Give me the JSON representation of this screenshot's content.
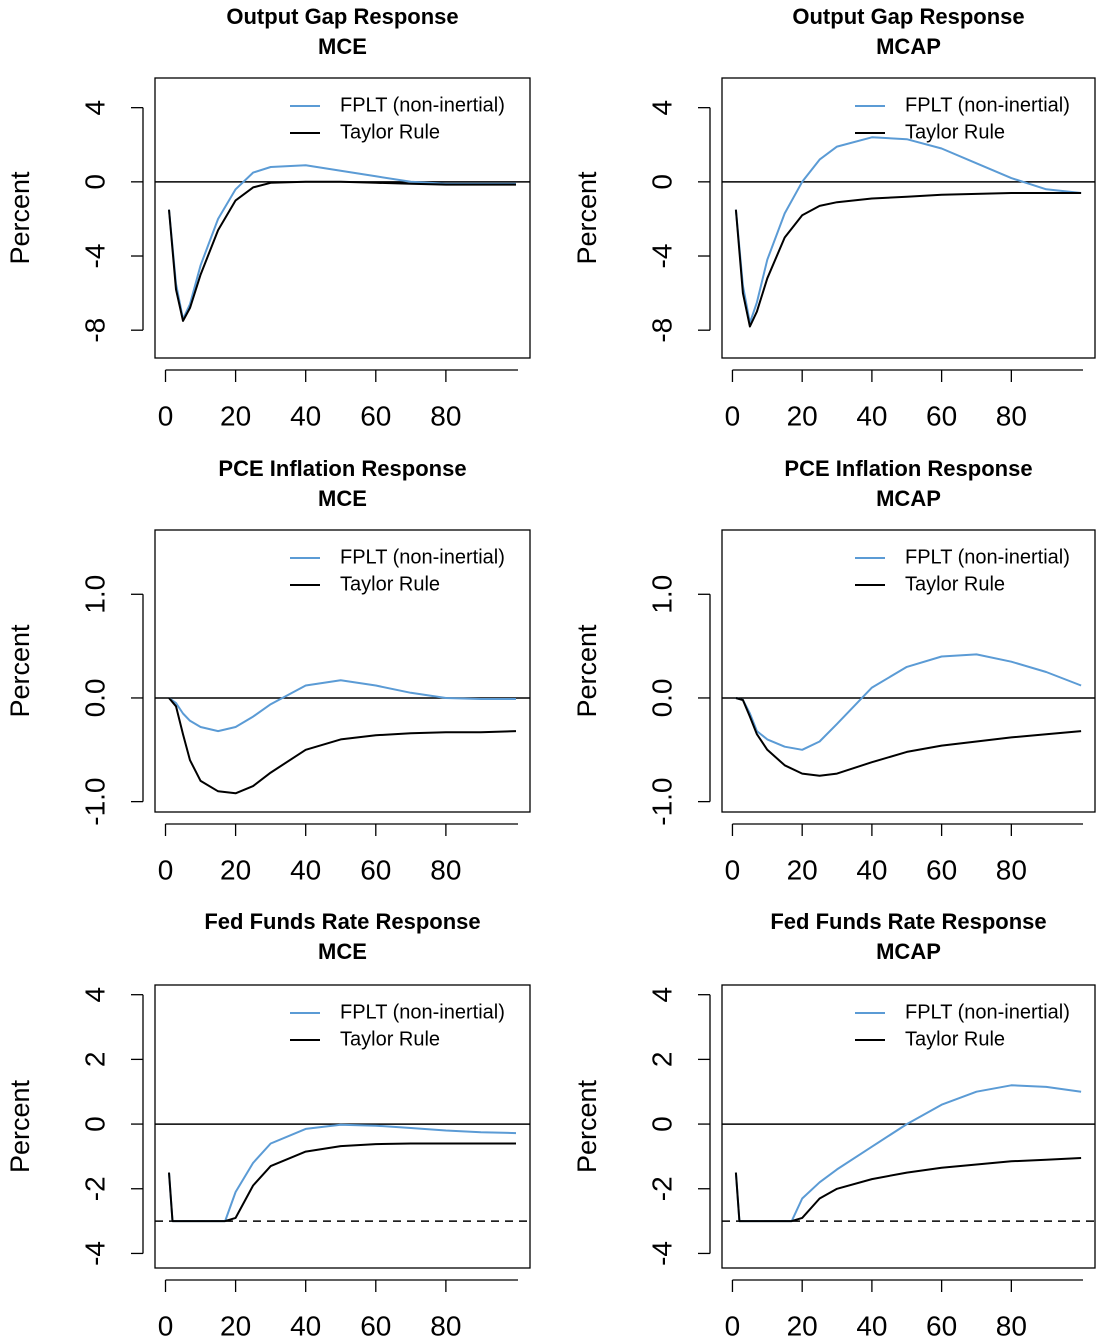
{
  "chart_data": [
    {
      "type": "line",
      "title": "Output Gap Response",
      "subtitle": "MCE",
      "ylabel": "Percent",
      "x": [
        1,
        3,
        5,
        7,
        10,
        15,
        20,
        25,
        30,
        40,
        50,
        60,
        70,
        80,
        90,
        100
      ],
      "series": [
        {
          "name": "FPLT (non-inertial)",
          "color": "#5b9bd5",
          "values": [
            -1.5,
            -5.5,
            -7.4,
            -6.6,
            -4.5,
            -2.0,
            -0.4,
            0.5,
            0.8,
            0.9,
            0.6,
            0.3,
            0.0,
            -0.1,
            -0.1,
            -0.1
          ]
        },
        {
          "name": "Taylor Rule",
          "color": "#000000",
          "values": [
            -1.5,
            -5.8,
            -7.5,
            -6.8,
            -5.0,
            -2.6,
            -1.0,
            -0.3,
            -0.05,
            0,
            0,
            -0.05,
            -0.1,
            -0.15,
            -0.15,
            -0.15
          ]
        }
      ],
      "xlim": [
        -3,
        104
      ],
      "xticks": [
        0,
        20,
        40,
        60,
        80
      ],
      "ylim": [
        -9.5,
        5.6
      ],
      "yticks": [
        -8,
        -4,
        0,
        4
      ],
      "hline": 0,
      "legend": "topright"
    },
    {
      "type": "line",
      "title": "Output Gap Response",
      "subtitle": "MCAP",
      "ylabel": "Percent",
      "x": [
        1,
        3,
        5,
        7,
        10,
        15,
        20,
        25,
        30,
        40,
        50,
        60,
        70,
        80,
        90,
        100
      ],
      "series": [
        {
          "name": "FPLT (non-inertial)",
          "color": "#5b9bd5",
          "values": [
            -1.5,
            -5.6,
            -7.6,
            -6.5,
            -4.2,
            -1.7,
            0.0,
            1.2,
            1.9,
            2.4,
            2.3,
            1.8,
            1.0,
            0.2,
            -0.4,
            -0.6
          ]
        },
        {
          "name": "Taylor Rule",
          "color": "#000000",
          "values": [
            -1.5,
            -6.0,
            -7.8,
            -7.0,
            -5.2,
            -3.0,
            -1.8,
            -1.3,
            -1.1,
            -0.9,
            -0.8,
            -0.7,
            -0.65,
            -0.6,
            -0.6,
            -0.6
          ]
        }
      ],
      "xlim": [
        -3,
        104
      ],
      "xticks": [
        0,
        20,
        40,
        60,
        80
      ],
      "ylim": [
        -9.5,
        5.6
      ],
      "yticks": [
        -8,
        -4,
        0,
        4
      ],
      "hline": 0,
      "legend": "topright"
    },
    {
      "type": "line",
      "title": "PCE Inflation Response",
      "subtitle": "MCE",
      "ylabel": "Percent",
      "x": [
        1,
        3,
        5,
        7,
        10,
        15,
        20,
        25,
        30,
        40,
        50,
        60,
        70,
        80,
        90,
        100
      ],
      "series": [
        {
          "name": "FPLT (non-inertial)",
          "color": "#5b9bd5",
          "values": [
            0,
            -0.05,
            -0.15,
            -0.22,
            -0.28,
            -0.32,
            -0.28,
            -0.18,
            -0.06,
            0.12,
            0.17,
            0.12,
            0.05,
            0.0,
            -0.01,
            -0.01
          ]
        },
        {
          "name": "Taylor Rule",
          "color": "#000000",
          "values": [
            0,
            -0.08,
            -0.35,
            -0.6,
            -0.8,
            -0.9,
            -0.92,
            -0.85,
            -0.72,
            -0.5,
            -0.4,
            -0.36,
            -0.34,
            -0.33,
            -0.33,
            -0.32
          ]
        }
      ],
      "xlim": [
        -3,
        104
      ],
      "xticks": [
        0,
        20,
        40,
        60,
        80
      ],
      "ylim": [
        -1.1,
        1.62
      ],
      "yticks": [
        {
          "value": -1,
          "label": "-1.0"
        },
        {
          "value": 0,
          "label": "0.0"
        },
        {
          "value": 1,
          "label": "1.0"
        }
      ],
      "hline": 0,
      "legend": "topright"
    },
    {
      "type": "line",
      "title": "PCE Inflation Response",
      "subtitle": "MCAP",
      "ylabel": "Percent",
      "x": [
        1,
        3,
        5,
        7,
        10,
        15,
        20,
        25,
        30,
        40,
        50,
        60,
        70,
        80,
        90,
        100
      ],
      "series": [
        {
          "name": "FPLT (non-inertial)",
          "color": "#5b9bd5",
          "values": [
            0,
            -0.02,
            -0.15,
            -0.32,
            -0.4,
            -0.47,
            -0.5,
            -0.42,
            -0.25,
            0.1,
            0.3,
            0.4,
            0.42,
            0.35,
            0.25,
            0.12
          ]
        },
        {
          "name": "Taylor Rule",
          "color": "#000000",
          "values": [
            0,
            -0.02,
            -0.18,
            -0.35,
            -0.5,
            -0.65,
            -0.73,
            -0.75,
            -0.73,
            -0.62,
            -0.52,
            -0.46,
            -0.42,
            -0.38,
            -0.35,
            -0.32
          ]
        }
      ],
      "xlim": [
        -3,
        104
      ],
      "xticks": [
        0,
        20,
        40,
        60,
        80
      ],
      "ylim": [
        -1.1,
        1.62
      ],
      "yticks": [
        {
          "value": -1,
          "label": "-1.0"
        },
        {
          "value": 0,
          "label": "0.0"
        },
        {
          "value": 1,
          "label": "1.0"
        }
      ],
      "hline": 0,
      "legend": "topright"
    },
    {
      "type": "line",
      "title": "Fed Funds Rate Response",
      "subtitle": "MCE",
      "ylabel": "Percent",
      "x": [
        1,
        2,
        5,
        10,
        15,
        17,
        20,
        25,
        30,
        40,
        50,
        60,
        70,
        80,
        90,
        100
      ],
      "series": [
        {
          "name": "FPLT (non-inertial)",
          "color": "#5b9bd5",
          "values": [
            -1.5,
            -3,
            -3,
            -3,
            -3,
            -3,
            -2.1,
            -1.2,
            -0.6,
            -0.15,
            -0.02,
            -0.05,
            -0.12,
            -0.2,
            -0.25,
            -0.28
          ]
        },
        {
          "name": "Taylor Rule",
          "color": "#000000",
          "values": [
            -1.5,
            -3,
            -3,
            -3,
            -3,
            -3,
            -2.9,
            -1.9,
            -1.3,
            -0.85,
            -0.68,
            -0.62,
            -0.6,
            -0.6,
            -0.6,
            -0.6
          ]
        }
      ],
      "xlim": [
        -3,
        104
      ],
      "xticks": [
        0,
        20,
        40,
        60,
        80
      ],
      "ylim": [
        -4.45,
        4.3
      ],
      "yticks": [
        -4,
        -2,
        0,
        2,
        4
      ],
      "hline": 0,
      "dashed_hline": -3,
      "legend": "topright"
    },
    {
      "type": "line",
      "title": "Fed Funds Rate Response",
      "subtitle": "MCAP",
      "ylabel": "Percent",
      "x": [
        1,
        2,
        5,
        10,
        15,
        17,
        20,
        25,
        30,
        40,
        50,
        60,
        70,
        80,
        90,
        100
      ],
      "series": [
        {
          "name": "FPLT (non-inertial)",
          "color": "#5b9bd5",
          "values": [
            -1.5,
            -3,
            -3,
            -3,
            -3,
            -3,
            -2.3,
            -1.8,
            -1.4,
            -0.7,
            0.0,
            0.6,
            1.0,
            1.2,
            1.15,
            1.0
          ]
        },
        {
          "name": "Taylor Rule",
          "color": "#000000",
          "values": [
            -1.5,
            -3,
            -3,
            -3,
            -3,
            -3,
            -2.9,
            -2.3,
            -2.0,
            -1.7,
            -1.5,
            -1.35,
            -1.25,
            -1.15,
            -1.1,
            -1.05
          ]
        }
      ],
      "xlim": [
        -3,
        104
      ],
      "xticks": [
        0,
        20,
        40,
        60,
        80
      ],
      "ylim": [
        -4.45,
        4.3
      ],
      "yticks": [
        -4,
        -2,
        0,
        2,
        4
      ],
      "hline": 0,
      "dashed_hline": -3,
      "legend": "topright"
    }
  ]
}
